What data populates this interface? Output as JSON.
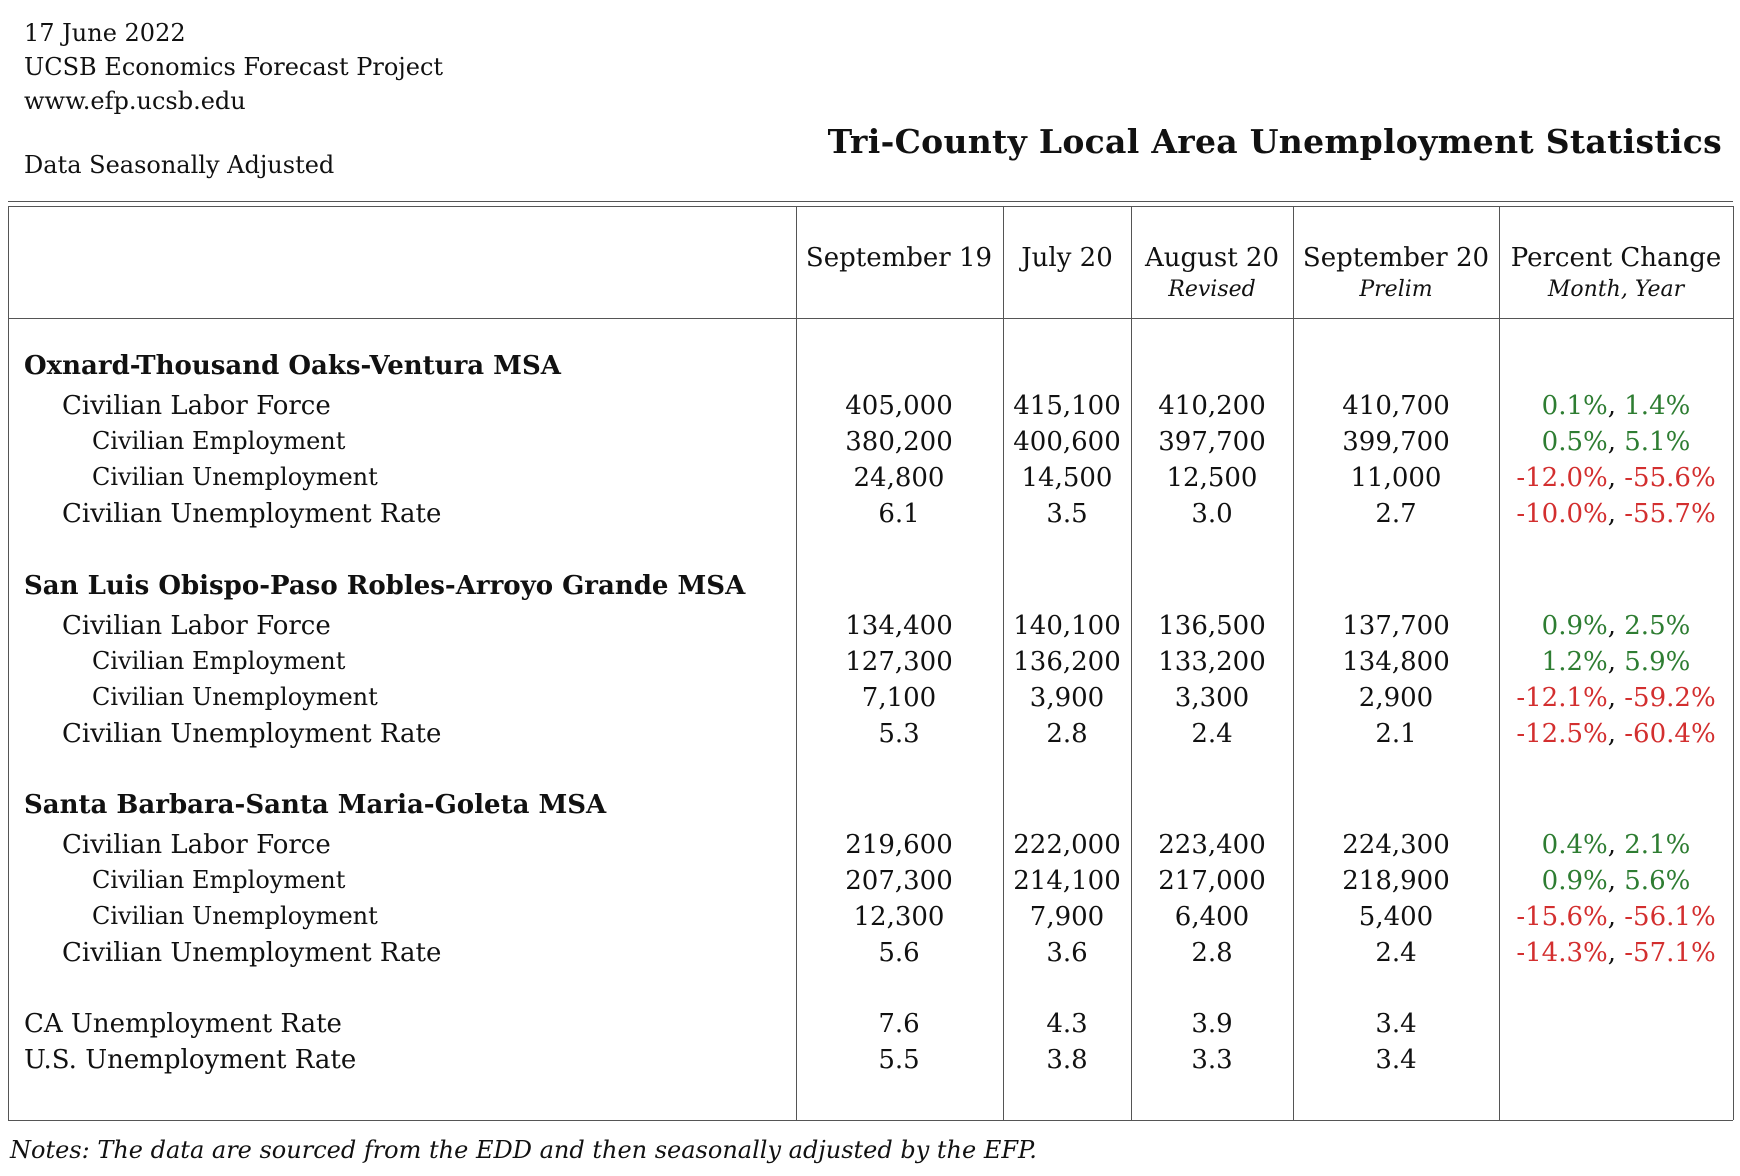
{
  "header": {
    "date": "17 June 2022",
    "org": "UCSB Economics Forecast Project",
    "url": "www.efp.ucsb.edu",
    "adjusted_note": "Data Seasonally Adjusted",
    "title": "Tri-County Local Area Unemployment Statistics"
  },
  "columns": [
    {
      "label": "September 19",
      "sub": ""
    },
    {
      "label": "July 20",
      "sub": ""
    },
    {
      "label": "August 20",
      "sub": "Revised"
    },
    {
      "label": "September 20",
      "sub": "Prelim"
    },
    {
      "label": "Percent Change",
      "sub": "Month, Year"
    }
  ],
  "sections": [
    {
      "name": "Oxnard-Thousand Oaks-Ventura MSA",
      "rows": [
        {
          "label": "Civilian Labor Force",
          "values": [
            "405,000",
            "415,100",
            "410,200",
            "410,700"
          ],
          "month": "0.1%",
          "year": "1.4%",
          "month_dir": "pos",
          "year_dir": "pos"
        },
        {
          "label": "Civilian Employment",
          "values": [
            "380,200",
            "400,600",
            "397,700",
            "399,700"
          ],
          "month": "0.5%",
          "year": "5.1%",
          "month_dir": "pos",
          "year_dir": "pos"
        },
        {
          "label": "Civilian Unemployment",
          "values": [
            "24,800",
            "14,500",
            "12,500",
            "11,000"
          ],
          "month": "-12.0%",
          "year": "-55.6%",
          "month_dir": "neg",
          "year_dir": "neg"
        },
        {
          "label": "Civilian Unemployment Rate",
          "values": [
            "6.1",
            "3.5",
            "3.0",
            "2.7"
          ],
          "month": "-10.0%",
          "year": "-55.7%",
          "month_dir": "neg",
          "year_dir": "neg"
        }
      ]
    },
    {
      "name": "San Luis Obispo-Paso Robles-Arroyo Grande MSA",
      "rows": [
        {
          "label": "Civilian Labor Force",
          "values": [
            "134,400",
            "140,100",
            "136,500",
            "137,700"
          ],
          "month": "0.9%",
          "year": "2.5%",
          "month_dir": "pos",
          "year_dir": "pos"
        },
        {
          "label": "Civilian Employment",
          "values": [
            "127,300",
            "136,200",
            "133,200",
            "134,800"
          ],
          "month": "1.2%",
          "year": "5.9%",
          "month_dir": "pos",
          "year_dir": "pos"
        },
        {
          "label": "Civilian Unemployment",
          "values": [
            "7,100",
            "3,900",
            "3,300",
            "2,900"
          ],
          "month": "-12.1%",
          "year": "-59.2%",
          "month_dir": "neg",
          "year_dir": "neg"
        },
        {
          "label": "Civilian Unemployment Rate",
          "values": [
            "5.3",
            "2.8",
            "2.4",
            "2.1"
          ],
          "month": "-12.5%",
          "year": "-60.4%",
          "month_dir": "neg",
          "year_dir": "neg"
        }
      ]
    },
    {
      "name": "Santa Barbara-Santa Maria-Goleta MSA",
      "rows": [
        {
          "label": "Civilian Labor Force",
          "values": [
            "219,600",
            "222,000",
            "223,400",
            "224,300"
          ],
          "month": "0.4%",
          "year": "2.1%",
          "month_dir": "pos",
          "year_dir": "pos"
        },
        {
          "label": "Civilian Employment",
          "values": [
            "207,300",
            "214,100",
            "217,000",
            "218,900"
          ],
          "month": "0.9%",
          "year": "5.6%",
          "month_dir": "pos",
          "year_dir": "pos"
        },
        {
          "label": "Civilian Unemployment",
          "values": [
            "12,300",
            "7,900",
            "6,400",
            "5,400"
          ],
          "month": "-15.6%",
          "year": "-56.1%",
          "month_dir": "neg",
          "year_dir": "neg"
        },
        {
          "label": "Civilian Unemployment Rate",
          "values": [
            "5.6",
            "3.6",
            "2.8",
            "2.4"
          ],
          "month": "-14.3%",
          "year": "-57.1%",
          "month_dir": "neg",
          "year_dir": "neg"
        }
      ]
    }
  ],
  "summary_rows": [
    {
      "label": "CA Unemployment Rate",
      "values": [
        "7.6",
        "4.3",
        "3.9",
        "3.4"
      ]
    },
    {
      "label": "U.S. Unemployment Rate",
      "values": [
        "5.5",
        "3.8",
        "3.3",
        "3.4"
      ]
    }
  ],
  "notes": "Notes: The data are sourced from the EDD and then seasonally adjusted by the EFP.",
  "colors": {
    "positive": "#2e7d32",
    "negative": "#d32f2f"
  }
}
